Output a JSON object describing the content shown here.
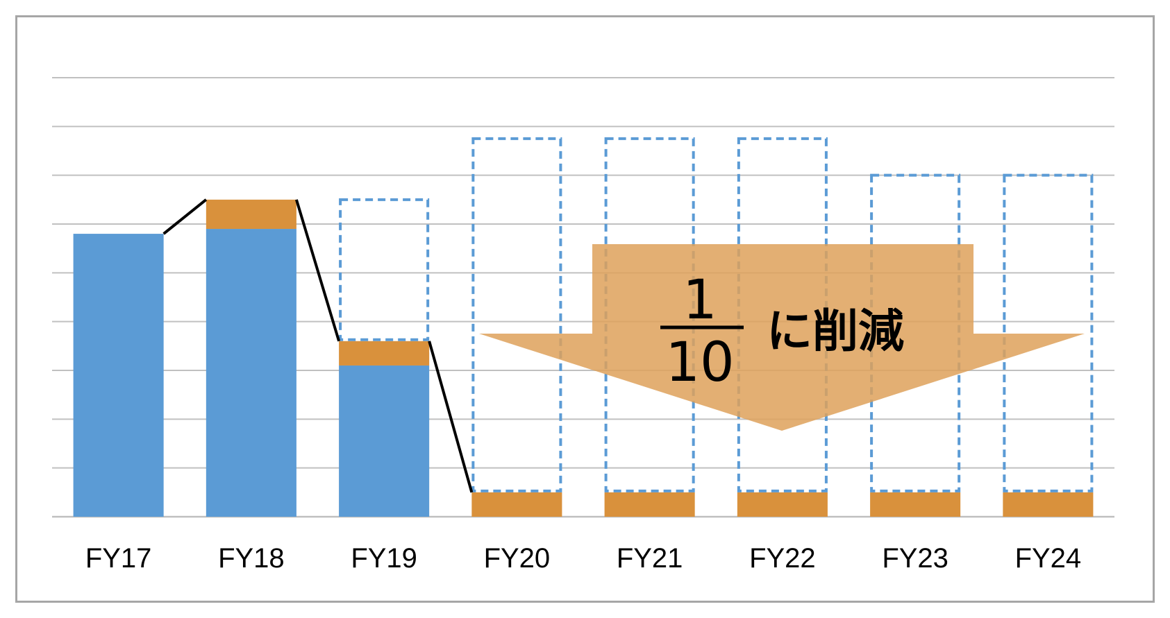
{
  "chart_data": {
    "type": "bar",
    "stacked": true,
    "categories": [
      "FY17",
      "FY18",
      "FY19",
      "FY20",
      "FY21",
      "FY22",
      "FY23",
      "FY24"
    ],
    "ylim": [
      0,
      9
    ],
    "grid": true,
    "series": [
      {
        "color": "#5b9bd5",
        "values": [
          5.8,
          5.9,
          3.1,
          0,
          0,
          0,
          0,
          0
        ]
      },
      {
        "color": "#d9913c",
        "values": [
          0,
          0.6,
          0.5,
          0.5,
          0.5,
          0.5,
          0.5,
          0.5
        ]
      }
    ],
    "projected_outline": {
      "color": "#5b9bd5",
      "values": [
        null,
        null,
        6.5,
        7.75,
        7.75,
        7.75,
        7.0,
        7.0
      ]
    },
    "connector_line": {
      "color": "#000000"
    },
    "annotation": {
      "numerator": "1",
      "denominator": "10",
      "suffix": "に削減",
      "arrow_color": "#dea15a"
    }
  }
}
